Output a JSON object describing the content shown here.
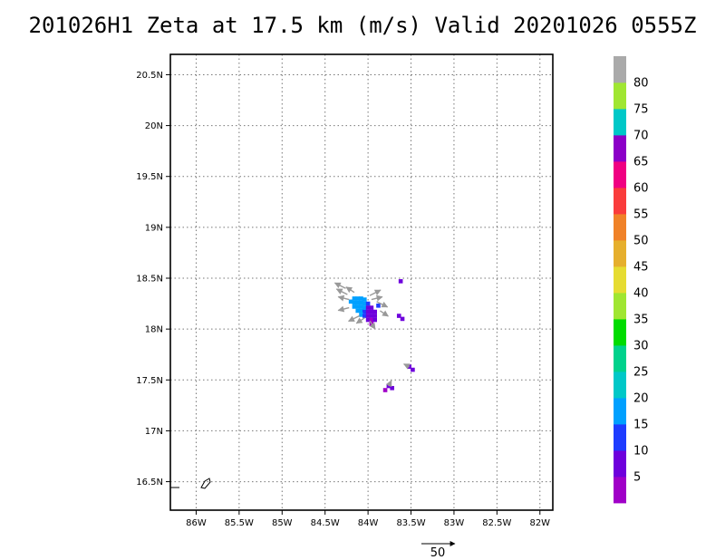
{
  "chart_data": {
    "type": "heatmap",
    "title": "201026H1  Zeta at 17.5 km (m/s) Valid 20201026  0555Z",
    "xlim": [
      -86.3,
      -81.85
    ],
    "ylim": [
      16.22,
      20.7
    ],
    "x_ticks": [
      {
        "value": -86.0,
        "label": "86W"
      },
      {
        "value": -85.5,
        "label": "85.5W"
      },
      {
        "value": -85.0,
        "label": "85W"
      },
      {
        "value": -84.5,
        "label": "84.5W"
      },
      {
        "value": -84.0,
        "label": "84W"
      },
      {
        "value": -83.5,
        "label": "83.5W"
      },
      {
        "value": -83.0,
        "label": "83W"
      },
      {
        "value": -82.5,
        "label": "82.5W"
      },
      {
        "value": -82.0,
        "label": "82W"
      }
    ],
    "y_ticks": [
      {
        "value": 16.5,
        "label": "16.5N"
      },
      {
        "value": 17.0,
        "label": "17N"
      },
      {
        "value": 17.5,
        "label": "17.5N"
      },
      {
        "value": 18.0,
        "label": "18N"
      },
      {
        "value": 18.5,
        "label": "18.5N"
      },
      {
        "value": 19.0,
        "label": "19N"
      },
      {
        "value": 19.5,
        "label": "19.5N"
      },
      {
        "value": 20.0,
        "label": "20N"
      },
      {
        "value": 20.5,
        "label": "20.5N"
      }
    ],
    "grid": true,
    "colorbar": {
      "levels": [
        {
          "min": 0,
          "max": 5,
          "color": "#a000c8",
          "label": ""
        },
        {
          "min": 5,
          "max": 10,
          "color": "#6e00dc",
          "label": "5"
        },
        {
          "min": 10,
          "max": 15,
          "color": "#1e3cff",
          "label": "10"
        },
        {
          "min": 15,
          "max": 20,
          "color": "#00a0ff",
          "label": "15"
        },
        {
          "min": 20,
          "max": 25,
          "color": "#00c8c8",
          "label": "20"
        },
        {
          "min": 25,
          "max": 30,
          "color": "#00d28c",
          "label": "25"
        },
        {
          "min": 30,
          "max": 35,
          "color": "#00dc00",
          "label": "30"
        },
        {
          "min": 35,
          "max": 40,
          "color": "#a0e632",
          "label": "35"
        },
        {
          "min": 40,
          "max": 45,
          "color": "#e6dc32",
          "label": "40"
        },
        {
          "min": 45,
          "max": 50,
          "color": "#e6af2d",
          "label": "45"
        },
        {
          "min": 50,
          "max": 55,
          "color": "#f08228",
          "label": "50"
        },
        {
          "min": 55,
          "max": 60,
          "color": "#fa3c3c",
          "label": "55"
        },
        {
          "min": 60,
          "max": 65,
          "color": "#f00082",
          "label": "60"
        },
        {
          "min": 65,
          "max": 70,
          "color": "#8c00c8",
          "label": "65"
        },
        {
          "min": 70,
          "max": 75,
          "color": "#00c8c8",
          "label": "70"
        },
        {
          "min": 75,
          "max": 80,
          "color": "#a0e632",
          "label": "75"
        },
        {
          "min": 80,
          "max": 85,
          "color": "#aaaaaa",
          "label": "80"
        }
      ]
    },
    "reference_vector": {
      "value": 50,
      "label": "50"
    },
    "cells": [
      {
        "lon": -84.16,
        "lat": 18.3,
        "v": 17
      },
      {
        "lon": -84.12,
        "lat": 18.3,
        "v": 17
      },
      {
        "lon": -84.08,
        "lat": 18.3,
        "v": 18
      },
      {
        "lon": -84.04,
        "lat": 18.29,
        "v": 16
      },
      {
        "lon": -84.2,
        "lat": 18.27,
        "v": 18
      },
      {
        "lon": -84.16,
        "lat": 18.26,
        "v": 19
      },
      {
        "lon": -84.12,
        "lat": 18.26,
        "v": 18
      },
      {
        "lon": -84.08,
        "lat": 18.26,
        "v": 17
      },
      {
        "lon": -84.04,
        "lat": 18.25,
        "v": 16
      },
      {
        "lon": -84.0,
        "lat": 18.25,
        "v": 12
      },
      {
        "lon": -84.16,
        "lat": 18.22,
        "v": 19
      },
      {
        "lon": -84.12,
        "lat": 18.22,
        "v": 17
      },
      {
        "lon": -84.08,
        "lat": 18.22,
        "v": 16
      },
      {
        "lon": -84.04,
        "lat": 18.21,
        "v": 16
      },
      {
        "lon": -84.0,
        "lat": 18.21,
        "v": 8
      },
      {
        "lon": -83.96,
        "lat": 18.21,
        "v": 8
      },
      {
        "lon": -84.12,
        "lat": 18.18,
        "v": 18
      },
      {
        "lon": -84.08,
        "lat": 18.18,
        "v": 17
      },
      {
        "lon": -84.04,
        "lat": 18.17,
        "v": 14
      },
      {
        "lon": -84.0,
        "lat": 18.17,
        "v": 7
      },
      {
        "lon": -83.96,
        "lat": 18.17,
        "v": 6
      },
      {
        "lon": -83.92,
        "lat": 18.17,
        "v": 7
      },
      {
        "lon": -84.08,
        "lat": 18.14,
        "v": 16
      },
      {
        "lon": -84.04,
        "lat": 18.13,
        "v": 12
      },
      {
        "lon": -84.0,
        "lat": 18.13,
        "v": 6
      },
      {
        "lon": -83.96,
        "lat": 18.13,
        "v": 7
      },
      {
        "lon": -83.92,
        "lat": 18.13,
        "v": 8
      },
      {
        "lon": -84.0,
        "lat": 18.09,
        "v": 6
      },
      {
        "lon": -83.96,
        "lat": 18.09,
        "v": 4
      },
      {
        "lon": -83.92,
        "lat": 18.09,
        "v": 7
      },
      {
        "lon": -83.96,
        "lat": 18.05,
        "v": 4
      },
      {
        "lon": -83.88,
        "lat": 18.23,
        "v": 12
      },
      {
        "lon": -83.64,
        "lat": 18.13,
        "v": 8
      },
      {
        "lon": -83.6,
        "lat": 18.1,
        "v": 7
      },
      {
        "lon": -83.62,
        "lat": 18.47,
        "v": 8
      },
      {
        "lon": -83.52,
        "lat": 17.63,
        "v": 6
      },
      {
        "lon": -83.48,
        "lat": 17.6,
        "v": 8
      },
      {
        "lon": -83.76,
        "lat": 17.44,
        "v": 6
      },
      {
        "lon": -83.72,
        "lat": 17.42,
        "v": 7
      },
      {
        "lon": -83.8,
        "lat": 17.4,
        "v": 3
      }
    ],
    "vectors": [
      {
        "lon": -84.26,
        "lat": 18.4,
        "u": -4,
        "v": 2
      },
      {
        "lon": -84.24,
        "lat": 18.34,
        "u": -4,
        "v": 2
      },
      {
        "lon": -84.16,
        "lat": 18.36,
        "u": -3,
        "v": 2
      },
      {
        "lon": -84.22,
        "lat": 18.29,
        "u": -4,
        "v": 1
      },
      {
        "lon": -83.98,
        "lat": 18.33,
        "u": 4,
        "v": 2
      },
      {
        "lon": -83.96,
        "lat": 18.29,
        "u": 4,
        "v": 1
      },
      {
        "lon": -84.22,
        "lat": 18.21,
        "u": -4,
        "v": -1
      },
      {
        "lon": -84.1,
        "lat": 18.13,
        "u": -4,
        "v": -2
      },
      {
        "lon": -83.9,
        "lat": 18.27,
        "u": 4,
        "v": -2
      },
      {
        "lon": -83.86,
        "lat": 18.18,
        "u": 3,
        "v": -2
      },
      {
        "lon": -83.98,
        "lat": 18.08,
        "u": 2,
        "v": -3
      },
      {
        "lon": -84.04,
        "lat": 18.11,
        "u": -3,
        "v": -2
      },
      {
        "lon": -83.52,
        "lat": 17.63,
        "u": -2,
        "v": 1
      },
      {
        "lon": -83.76,
        "lat": 17.44,
        "u": 1,
        "v": 2
      }
    ]
  }
}
